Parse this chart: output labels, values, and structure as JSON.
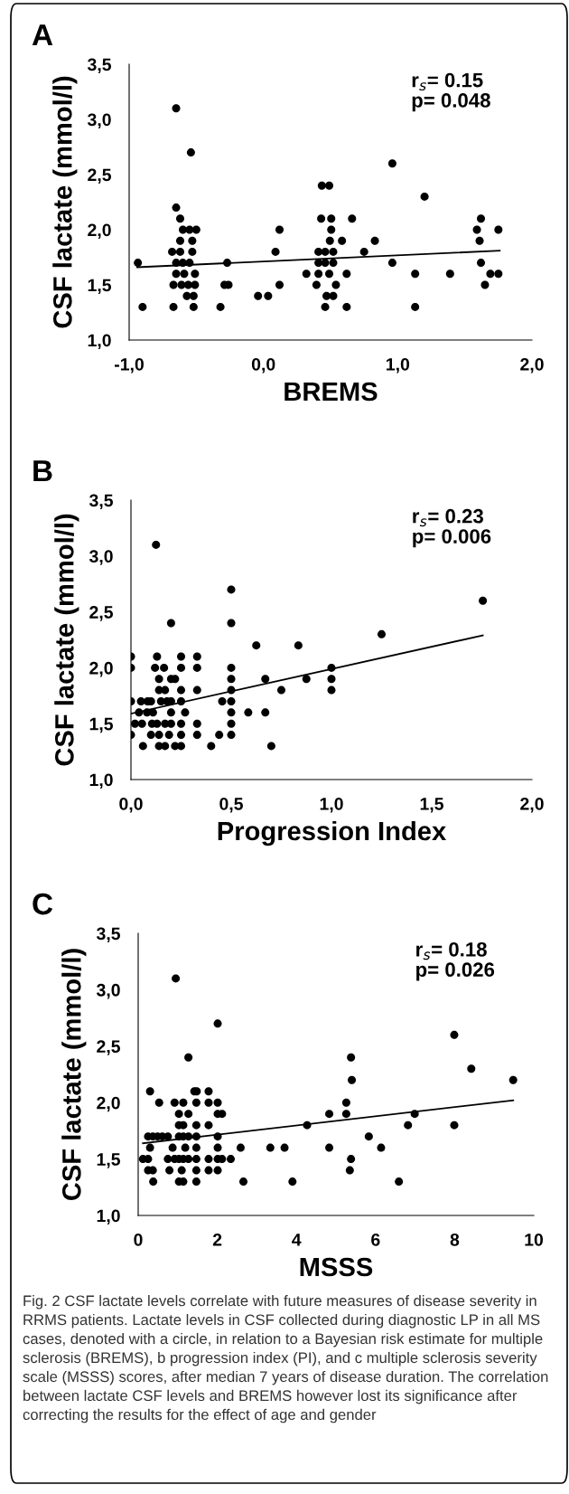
{
  "chart_data": [
    {
      "type": "scatter",
      "title": "A",
      "xlabel": "BREMS",
      "ylabel": "CSF lactate (mmol/l)",
      "annotations": [
        "r$_{s}$= 0.15\np= 0.048"
      ],
      "grid": false,
      "xlim": [
        -1.0,
        2.0
      ],
      "xticks": [
        {
          "value": -1.0,
          "label": "-1,0"
        },
        {
          "value": 0.0,
          "label": "0,0"
        },
        {
          "value": 1.0,
          "label": "1,0"
        },
        {
          "value": 2.0,
          "label": "2,0"
        }
      ],
      "ylim": [
        1.0,
        3.5
      ],
      "yticks": [
        {
          "value": 1.0,
          "label": "1,0"
        },
        {
          "value": 1.5,
          "label": "1,5"
        },
        {
          "value": 2.0,
          "label": "2,0"
        },
        {
          "value": 2.5,
          "label": "2,5"
        },
        {
          "value": 3.0,
          "label": "3,0"
        },
        {
          "value": 3.5,
          "label": "3,5"
        }
      ],
      "series": [
        {
          "marker": "circle",
          "color": "#000000",
          "x": [
            -0.935,
            -0.9,
            -0.65,
            -0.54,
            -0.65,
            -0.62,
            -0.6,
            -0.55,
            -0.5,
            -0.62,
            -0.53,
            -0.68,
            -0.62,
            -0.53,
            -0.65,
            -0.6,
            -0.55,
            -0.65,
            -0.59,
            -0.51,
            -0.67,
            -0.61,
            -0.56,
            -0.51,
            -0.57,
            -0.52,
            -0.67,
            -0.52,
            -0.27,
            -0.32,
            -0.29,
            -0.26,
            -0.04,
            0.035,
            0.09,
            0.12,
            0.12,
            0.435,
            0.49,
            0.43,
            0.505,
            0.505,
            0.495,
            0.585,
            0.41,
            0.46,
            0.52,
            0.41,
            0.46,
            0.52,
            0.32,
            0.41,
            0.49,
            0.62,
            0.395,
            0.54,
            0.47,
            0.52,
            0.46,
            0.62,
            0.66,
            0.75,
            0.83,
            0.96,
            0.96,
            1.13,
            1.13,
            1.2,
            1.39,
            1.59,
            1.62,
            1.61,
            1.62,
            1.65,
            1.69,
            1.75,
            1.75
          ],
          "values": [
            1.7,
            1.3,
            3.1,
            2.7,
            2.2,
            2.1,
            2.0,
            2.0,
            2.0,
            1.9,
            1.9,
            1.8,
            1.8,
            1.8,
            1.7,
            1.7,
            1.7,
            1.6,
            1.6,
            1.6,
            1.5,
            1.5,
            1.5,
            1.5,
            1.4,
            1.4,
            1.3,
            1.3,
            1.7,
            1.3,
            1.5,
            1.5,
            1.4,
            1.4,
            1.8,
            2.0,
            1.5,
            2.4,
            2.4,
            2.1,
            2.1,
            2.0,
            1.9,
            1.9,
            1.8,
            1.8,
            1.8,
            1.7,
            1.7,
            1.7,
            1.6,
            1.6,
            1.6,
            1.6,
            1.5,
            1.5,
            1.4,
            1.4,
            1.3,
            1.3,
            2.1,
            1.8,
            1.9,
            2.6,
            1.7,
            1.6,
            1.3,
            2.3,
            1.6,
            2.0,
            2.1,
            1.9,
            1.7,
            1.5,
            1.6,
            1.6,
            2.0
          ]
        },
        {
          "type": "line",
          "color": "#000000",
          "x": [
            -0.94,
            1.76
          ],
          "values": [
            1.66,
            1.81
          ]
        }
      ]
    },
    {
      "type": "scatter",
      "title": "B",
      "xlabel": "Progression Index",
      "ylabel": "CSF lactate (mmol/l)",
      "annotations": [
        "r$_{s}$= 0.23\np= 0.006"
      ],
      "grid": false,
      "xlim": [
        0.0,
        2.0
      ],
      "xticks": [
        {
          "value": 0.0,
          "label": "0,0"
        },
        {
          "value": 0.5,
          "label": "0,5"
        },
        {
          "value": 1.0,
          "label": "1,0"
        },
        {
          "value": 1.5,
          "label": "1,5"
        },
        {
          "value": 2.0,
          "label": "2,0"
        }
      ],
      "ylim": [
        1.0,
        3.5
      ],
      "yticks": [
        {
          "value": 1.0,
          "label": "1,0"
        },
        {
          "value": 1.5,
          "label": "1,5"
        },
        {
          "value": 2.0,
          "label": "2,0"
        },
        {
          "value": 2.5,
          "label": "2,5"
        },
        {
          "value": 3.0,
          "label": "3,0"
        },
        {
          "value": 3.5,
          "label": "3,5"
        }
      ],
      "series": [
        {
          "marker": "circle",
          "color": "#000000",
          "x": [
            0.125,
            0.5,
            0.2,
            0.5,
            1.755,
            1.25,
            0.625,
            0.835,
            0.0,
            0.13,
            0.25,
            0.33,
            0.0,
            0.12,
            0.165,
            0.25,
            0.33,
            0.5,
            1.0,
            0.14,
            0.2,
            0.22,
            0.5,
            0.67,
            0.875,
            1.0,
            0.14,
            0.17,
            0.25,
            0.33,
            0.5,
            0.75,
            1.0,
            0.0,
            0.05,
            0.083,
            0.1,
            0.15,
            0.18,
            0.2,
            0.25,
            0.455,
            0.5,
            0.04,
            0.08,
            0.11,
            0.2,
            0.27,
            0.5,
            0.585,
            0.67,
            0.02,
            0.055,
            0.105,
            0.13,
            0.17,
            0.2,
            0.25,
            0.33,
            0.5,
            0.0,
            0.1,
            0.14,
            0.19,
            0.25,
            0.33,
            0.44,
            0.5,
            0.06,
            0.14,
            0.17,
            0.22,
            0.25,
            0.4,
            0.7
          ],
          "values": [
            3.1,
            2.7,
            2.4,
            2.4,
            2.6,
            2.3,
            2.2,
            2.2,
            2.1,
            2.1,
            2.1,
            2.1,
            2.0,
            2.0,
            2.0,
            2.0,
            2.0,
            2.0,
            2.0,
            1.9,
            1.9,
            1.9,
            1.9,
            1.9,
            1.9,
            1.9,
            1.8,
            1.8,
            1.8,
            1.8,
            1.8,
            1.8,
            1.8,
            1.7,
            1.7,
            1.7,
            1.7,
            1.7,
            1.7,
            1.7,
            1.7,
            1.7,
            1.7,
            1.6,
            1.6,
            1.6,
            1.6,
            1.6,
            1.6,
            1.6,
            1.6,
            1.5,
            1.5,
            1.5,
            1.5,
            1.5,
            1.5,
            1.5,
            1.5,
            1.5,
            1.4,
            1.4,
            1.4,
            1.4,
            1.4,
            1.4,
            1.4,
            1.4,
            1.3,
            1.3,
            1.3,
            1.3,
            1.3,
            1.3,
            1.3
          ]
        },
        {
          "type": "line",
          "color": "#000000",
          "x": [
            0.0,
            1.755
          ],
          "values": [
            1.59,
            2.29
          ]
        }
      ]
    },
    {
      "type": "scatter",
      "title": "C",
      "xlabel": "MSSS",
      "ylabel": "CSF lactate (mmol/l)",
      "annotations": [
        "r$_{s}$= 0.18\np= 0.026",
        "Fig. 2 CSF lactate levels correlate with future measures of disease severity in RRMS patients. Lactate levels in CSF collected during diagnostic LP in all MS cases, denoted with a circle, in relation to a Bayesian risk estimate for multiple sclerosis (BREMS), b progression index (PI), and c multiple sclerosis severity scale (MSSS) scores, after median 7 years of disease duration. The correlation between lactate CSF levels and BREMS however lost its significance after correcting the results for the effect of age and gender"
      ],
      "grid": false,
      "xlim": [
        0,
        10
      ],
      "xticks": [
        0,
        2,
        4,
        6,
        8,
        10
      ],
      "ylim": [
        1.0,
        3.5
      ],
      "yticks": [
        {
          "value": 1.0,
          "label": "1,0"
        },
        {
          "value": 1.5,
          "label": "1,5"
        },
        {
          "value": 2.0,
          "label": "2,0"
        },
        {
          "value": 2.5,
          "label": "2,5"
        },
        {
          "value": 3.0,
          "label": "3,0"
        },
        {
          "value": 3.5,
          "label": "3,5"
        }
      ],
      "series": [
        {
          "marker": "circle",
          "color": "#000000",
          "x": [
            0.95,
            2.01,
            1.27,
            5.38,
            5.4,
            7.99,
            8.42,
            9.48,
            0.3,
            1.42,
            1.48,
            1.78,
            0.53,
            0.92,
            1.14,
            1.47,
            1.78,
            2.01,
            5.26,
            1.03,
            1.27,
            2.01,
            2.12,
            4.83,
            5.26,
            6.99,
            1.03,
            1.14,
            1.47,
            1.78,
            4.27,
            6.82,
            7.99,
            0.25,
            0.37,
            0.49,
            0.61,
            0.75,
            1.03,
            1.14,
            1.27,
            1.47,
            2.01,
            5.83,
            0.3,
            0.87,
            1.19,
            1.47,
            2.01,
            2.59,
            3.34,
            3.7,
            4.83,
            6.14,
            0.12,
            0.25,
            0.75,
            0.92,
            1.03,
            1.14,
            1.27,
            1.47,
            1.78,
            2.01,
            2.12,
            2.34,
            5.38,
            0.25,
            0.37,
            0.79,
            1.1,
            1.47,
            1.78,
            2.01,
            5.35,
            0.38,
            1.03,
            1.14,
            1.47,
            2.66,
            3.9,
            6.59
          ],
          "values": [
            3.1,
            2.7,
            2.4,
            2.4,
            2.2,
            2.6,
            2.3,
            2.2,
            2.1,
            2.1,
            2.1,
            2.1,
            2.0,
            2.0,
            2.0,
            2.0,
            2.0,
            2.0,
            2.0,
            1.9,
            1.9,
            1.9,
            1.9,
            1.9,
            1.9,
            1.9,
            1.8,
            1.8,
            1.8,
            1.8,
            1.8,
            1.8,
            1.8,
            1.7,
            1.7,
            1.7,
            1.7,
            1.7,
            1.7,
            1.7,
            1.7,
            1.7,
            1.7,
            1.7,
            1.6,
            1.6,
            1.6,
            1.6,
            1.6,
            1.6,
            1.6,
            1.6,
            1.6,
            1.6,
            1.5,
            1.5,
            1.5,
            1.5,
            1.5,
            1.5,
            1.5,
            1.5,
            1.5,
            1.5,
            1.5,
            1.5,
            1.5,
            1.4,
            1.4,
            1.4,
            1.4,
            1.4,
            1.4,
            1.4,
            1.4,
            1.3,
            1.3,
            1.3,
            1.3,
            1.3,
            1.3,
            1.3
          ]
        },
        {
          "type": "line",
          "color": "#000000",
          "x": [
            0.12,
            9.48
          ],
          "values": [
            1.64,
            2.02
          ]
        }
      ]
    }
  ]
}
